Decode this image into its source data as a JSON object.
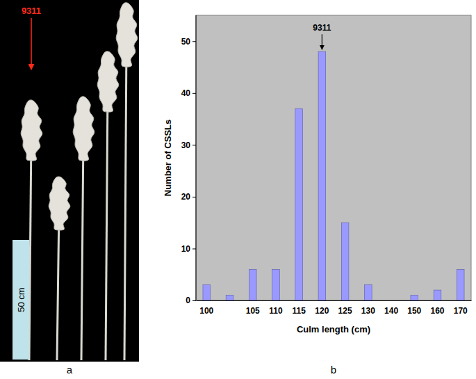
{
  "chart_data": {
    "type": "bar",
    "panel_label": "b",
    "x_label": "Culm length (cm)",
    "y_label": "Number of CSSLs",
    "categories": [
      "100",
      null,
      "105",
      "110",
      "115",
      "120",
      "125",
      "130",
      "140",
      "150",
      "160",
      "170"
    ],
    "values": [
      3,
      1,
      6,
      6,
      37,
      48,
      15,
      3,
      0,
      1,
      2,
      6
    ],
    "color": "#9999ff",
    "ylim": [
      0,
      55
    ],
    "yticks": [
      0,
      10,
      20,
      30,
      40,
      50
    ],
    "grid": false,
    "annotations": [
      {
        "text": "9311",
        "x": "120"
      }
    ]
  },
  "photo": {
    "panel_label": "a",
    "annotation": "9311",
    "scale_bar_label": "50 cm"
  }
}
